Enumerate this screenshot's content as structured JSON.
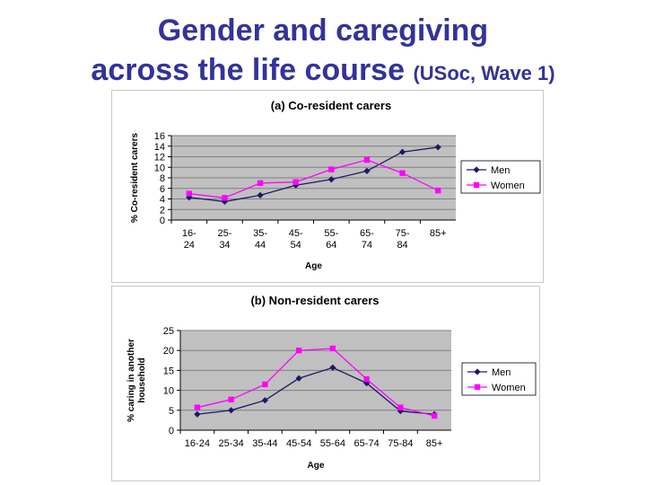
{
  "page": {
    "title_line1": "Gender and caregiving",
    "title_line2_main": "across the life course",
    "title_line2_small": "(USoc, Wave 1)"
  },
  "colors": {
    "men": "#1a1a66",
    "women": "#ff00ff",
    "plot_bg": "#c0c0c0",
    "grid": "#808080"
  },
  "chart_data": [
    {
      "type": "line",
      "title": "(a) Co-resident carers",
      "xlabel": "Age",
      "ylabel": "% Co-resident carers",
      "categories": [
        [
          "16-",
          "24"
        ],
        [
          "25-",
          "34"
        ],
        [
          "35-",
          "44"
        ],
        [
          "45-",
          "54"
        ],
        [
          "55-",
          "64"
        ],
        [
          "65-",
          "74"
        ],
        [
          "75-",
          "84"
        ],
        [
          "85+"
        ]
      ],
      "ylim": [
        0,
        16
      ],
      "yticks": [
        0,
        2,
        4,
        6,
        8,
        10,
        12,
        14,
        16
      ],
      "legend_position": "right",
      "series": [
        {
          "name": "Men",
          "color": "#1a1a66",
          "marker": "diamond",
          "values": [
            4.3,
            3.5,
            4.7,
            6.6,
            7.7,
            9.3,
            12.9,
            13.8
          ]
        },
        {
          "name": "Women",
          "color": "#ff00ff",
          "marker": "square",
          "values": [
            5.0,
            4.2,
            7.0,
            7.2,
            9.6,
            11.4,
            8.9,
            5.6
          ]
        }
      ]
    },
    {
      "type": "line",
      "title": "(b)  Non-resident carers",
      "xlabel": "Age",
      "ylabel": "% caring in another household",
      "categories": [
        [
          "16-24"
        ],
        [
          "25-34"
        ],
        [
          "35-44"
        ],
        [
          "45-54"
        ],
        [
          "55-64"
        ],
        [
          "65-74"
        ],
        [
          "75-84"
        ],
        [
          "85+"
        ]
      ],
      "ylim": [
        0,
        25
      ],
      "yticks": [
        0,
        5,
        10,
        15,
        20,
        25
      ],
      "legend_position": "right",
      "series": [
        {
          "name": "Men",
          "color": "#1a1a66",
          "marker": "diamond",
          "values": [
            4.0,
            5.0,
            7.5,
            13.0,
            15.7,
            11.8,
            4.8,
            4.0
          ]
        },
        {
          "name": "Women",
          "color": "#ff00ff",
          "marker": "square",
          "values": [
            5.7,
            7.7,
            11.5,
            20.0,
            20.5,
            12.8,
            5.7,
            3.6
          ]
        }
      ]
    }
  ]
}
